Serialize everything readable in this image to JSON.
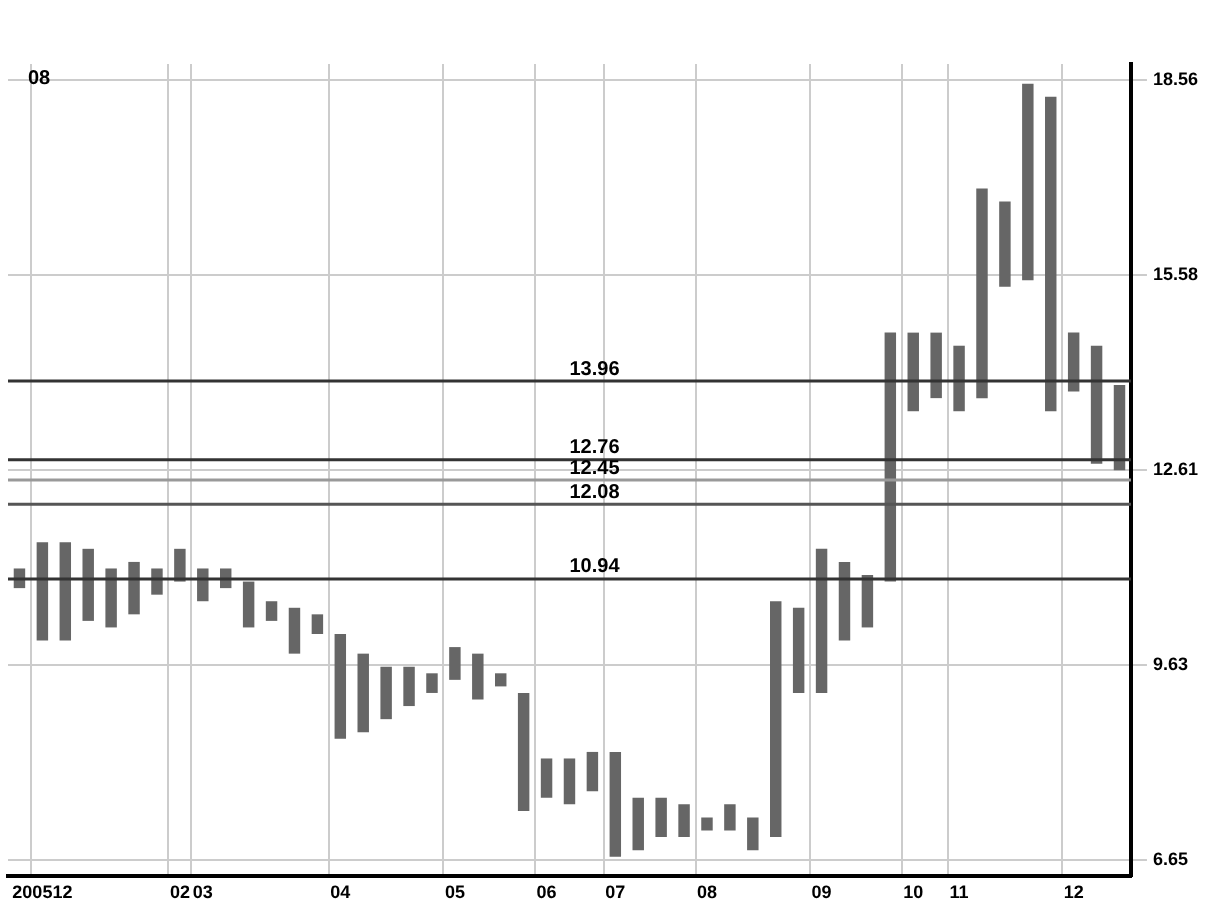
{
  "chart_data": {
    "type": "bar",
    "categories": [
      null,
      "200512",
      null,
      null,
      null,
      null,
      null,
      "02",
      "03",
      null,
      null,
      null,
      null,
      null,
      "04",
      null,
      null,
      null,
      null,
      "05",
      null,
      null,
      null,
      "06",
      null,
      null,
      "07",
      null,
      null,
      null,
      "08",
      null,
      null,
      null,
      null,
      "09",
      null,
      null,
      null,
      "10",
      null,
      "11",
      null,
      null,
      null,
      null,
      "12",
      null,
      null
    ],
    "base": [
      10.8,
      10.0,
      10.0,
      10.3,
      10.2,
      10.4,
      10.7,
      10.9,
      10.6,
      10.8,
      10.2,
      10.3,
      9.8,
      10.1,
      8.5,
      8.6,
      8.8,
      9.0,
      9.2,
      9.4,
      9.1,
      9.3,
      7.4,
      7.6,
      7.5,
      7.7,
      6.7,
      6.8,
      7.0,
      7.0,
      7.1,
      7.1,
      6.8,
      7.0,
      9.2,
      9.2,
      10.0,
      10.2,
      10.9,
      13.5,
      13.7,
      13.5,
      13.7,
      15.4,
      15.5,
      13.5,
      13.8,
      12.7,
      12.6
    ],
    "values": [
      0.3,
      1.5,
      1.5,
      1.1,
      0.9,
      0.8,
      0.4,
      0.5,
      0.5,
      0.3,
      0.7,
      0.3,
      0.7,
      0.3,
      1.6,
      1.2,
      0.8,
      0.6,
      0.3,
      0.5,
      0.7,
      0.2,
      1.8,
      0.6,
      0.7,
      0.6,
      1.6,
      0.8,
      0.6,
      0.5,
      0.2,
      0.4,
      0.5,
      3.6,
      1.3,
      2.2,
      1.2,
      0.8,
      3.8,
      1.2,
      1.0,
      1.0,
      3.2,
      1.3,
      3.0,
      4.8,
      0.9,
      1.8,
      1.3
    ],
    "color": "#666666",
    "ylim": [
      6.4,
      18.8
    ],
    "yticks": [
      18.56,
      15.58,
      12.61,
      9.63,
      6.65
    ],
    "ref_lines": [
      {
        "axis": "y",
        "value": 13.96,
        "label": "13.96",
        "color": "#333333"
      },
      {
        "axis": "y",
        "value": 12.76,
        "label": "12.76",
        "color": "#333333"
      },
      {
        "axis": "y",
        "value": 12.45,
        "label": "12.45",
        "color": "#999999"
      },
      {
        "axis": "y",
        "value": 12.08,
        "label": "12.08",
        "color": "#555555"
      },
      {
        "axis": "y",
        "value": 10.94,
        "label": "10.94",
        "color": "#333333"
      }
    ],
    "annotations": [
      "08"
    ],
    "grid": true,
    "legend": false
  }
}
